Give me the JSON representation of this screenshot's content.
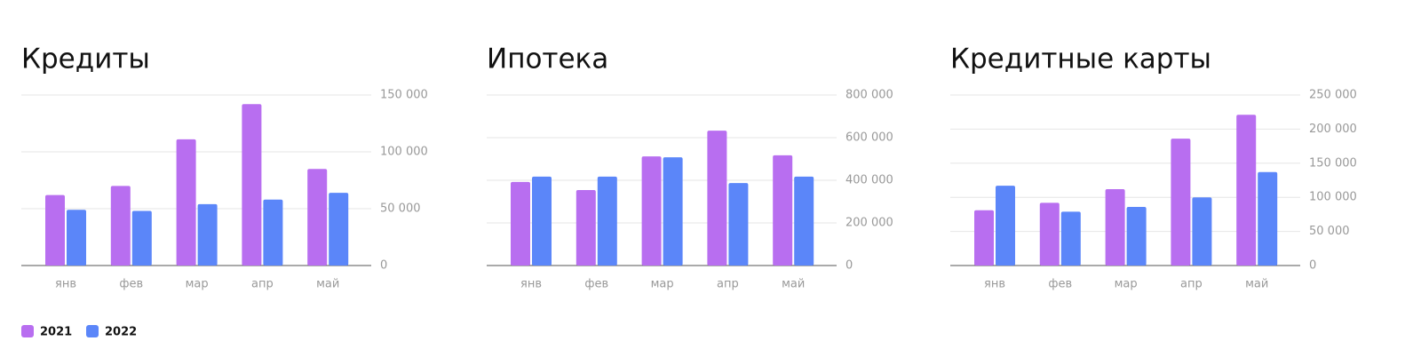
{
  "chart_data": [
    {
      "type": "bar",
      "title": "Кредиты",
      "categories": [
        "янв",
        "фев",
        "мар",
        "апр",
        "май"
      ],
      "series": [
        {
          "values": [
            62000,
            70000,
            111000,
            142000,
            85000
          ]
        },
        {
          "values": [
            49000,
            48000,
            54000,
            58000,
            64000
          ]
        }
      ],
      "ylim": [
        0,
        150000
      ],
      "yticks": [
        0,
        {
          "value": 50000,
          "label": "50 000"
        },
        {
          "value": 100000,
          "label": "100 000"
        },
        {
          "value": 150000,
          "label": "150 000"
        }
      ]
    },
    {
      "type": "bar",
      "title": "Ипотека",
      "categories": [
        "янв",
        "фев",
        "мар",
        "апр",
        "май"
      ],
      "series": [
        {
          "values": [
            392000,
            354000,
            512000,
            633000,
            517000
          ]
        },
        {
          "values": [
            417000,
            417000,
            508000,
            387000,
            417000
          ]
        }
      ],
      "ylim": [
        0,
        800000
      ],
      "yticks": [
        0,
        {
          "value": 200000,
          "label": "200 000"
        },
        {
          "value": 400000,
          "label": "400 000"
        },
        {
          "value": 600000,
          "label": "600 000"
        },
        {
          "value": 800000,
          "label": "800 000"
        }
      ]
    },
    {
      "type": "bar",
      "title": "Кредитные карты",
      "categories": [
        "янв",
        "фев",
        "мар",
        "апр",
        "май"
      ],
      "series": [
        {
          "values": [
            81000,
            92000,
            112000,
            186000,
            221000
          ]
        },
        {
          "values": [
            117000,
            79000,
            86000,
            100000,
            137000
          ]
        }
      ],
      "ylim": [
        0,
        250000
      ],
      "yticks": [
        0,
        {
          "value": 50000,
          "label": "50 000"
        },
        {
          "value": 100000,
          "label": "100 000"
        },
        {
          "value": 150000,
          "label": "150 000"
        },
        {
          "value": 200000,
          "label": "200 000"
        },
        {
          "value": 250000,
          "label": "250 000"
        }
      ]
    }
  ],
  "legend": [
    {
      "label": "2021",
      "color": "#b86ef0"
    },
    {
      "label": "2022",
      "color": "#5b86f9"
    }
  ]
}
